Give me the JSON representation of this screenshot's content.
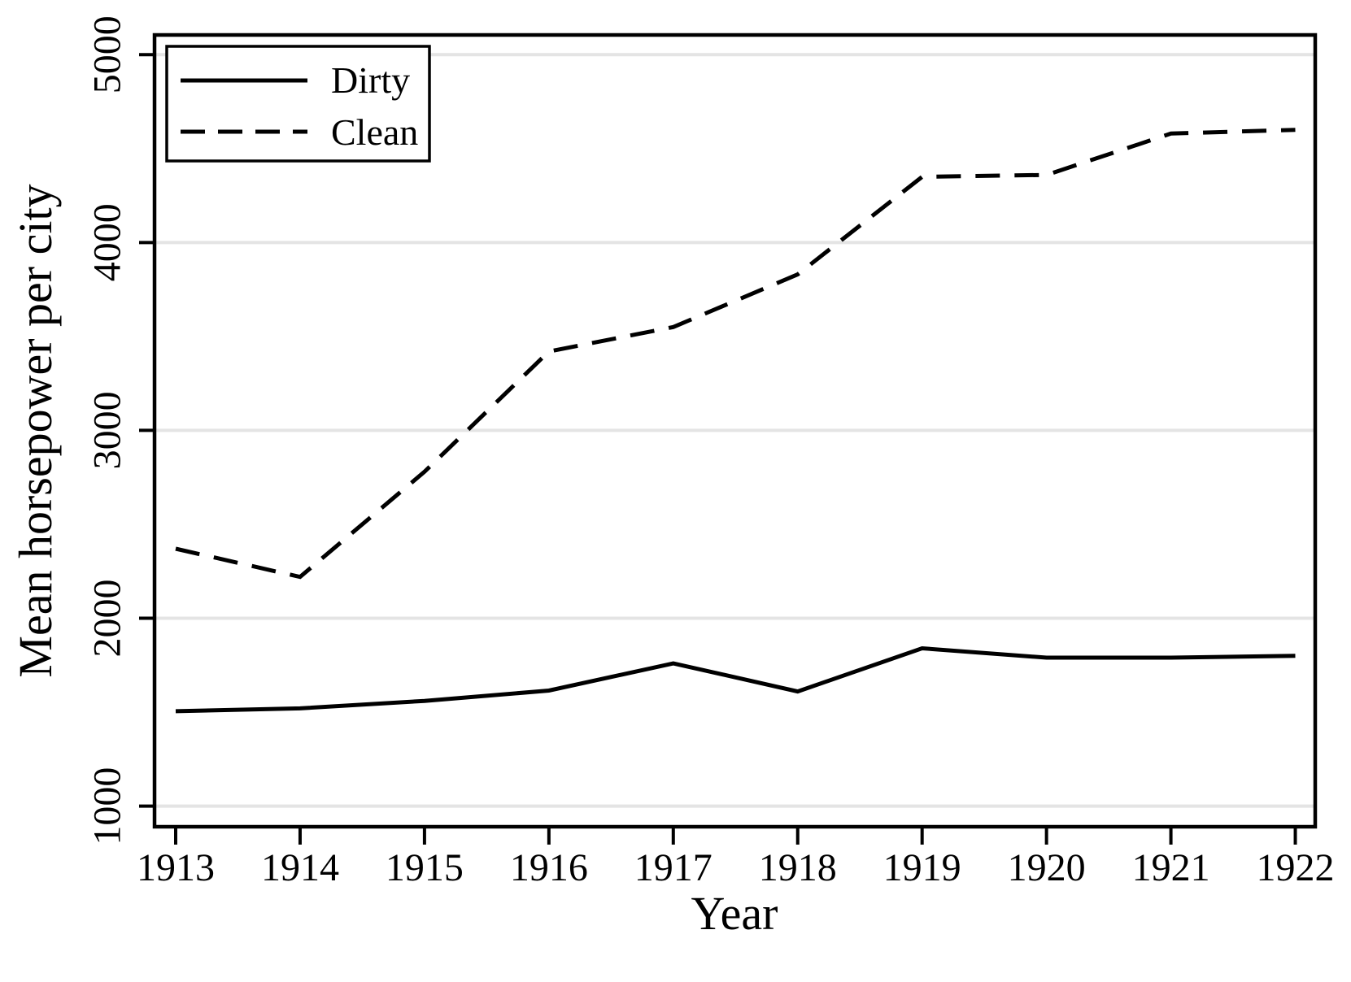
{
  "chart_data": {
    "type": "line",
    "title": "",
    "xlabel": "Year",
    "ylabel": "Mean horsepower per city",
    "x": [
      1913,
      1914,
      1915,
      1916,
      1917,
      1918,
      1919,
      1920,
      1921,
      1922
    ],
    "series": [
      {
        "name": "Dirty",
        "style": "solid",
        "values": [
          1505,
          1520,
          1560,
          1615,
          1760,
          1610,
          1840,
          1790,
          1790,
          1800
        ]
      },
      {
        "name": "Clean",
        "style": "dashed",
        "values": [
          2370,
          2220,
          2780,
          3420,
          3550,
          3830,
          4350,
          4360,
          4580,
          4600
        ]
      }
    ],
    "x_ticks": [
      1913,
      1914,
      1915,
      1916,
      1917,
      1918,
      1919,
      1920,
      1921,
      1922
    ],
    "y_ticks": [
      1000,
      2000,
      3000,
      4000,
      5000
    ],
    "xlim": [
      1912.83,
      1922.16
    ],
    "ylim": [
      890,
      5105
    ],
    "grid": "horizontal-only",
    "legend_position": "top-left-inside",
    "colors": {
      "line": "#000000",
      "grid": "#e4e4e4",
      "background": "#ffffff",
      "text": "#000000"
    }
  }
}
